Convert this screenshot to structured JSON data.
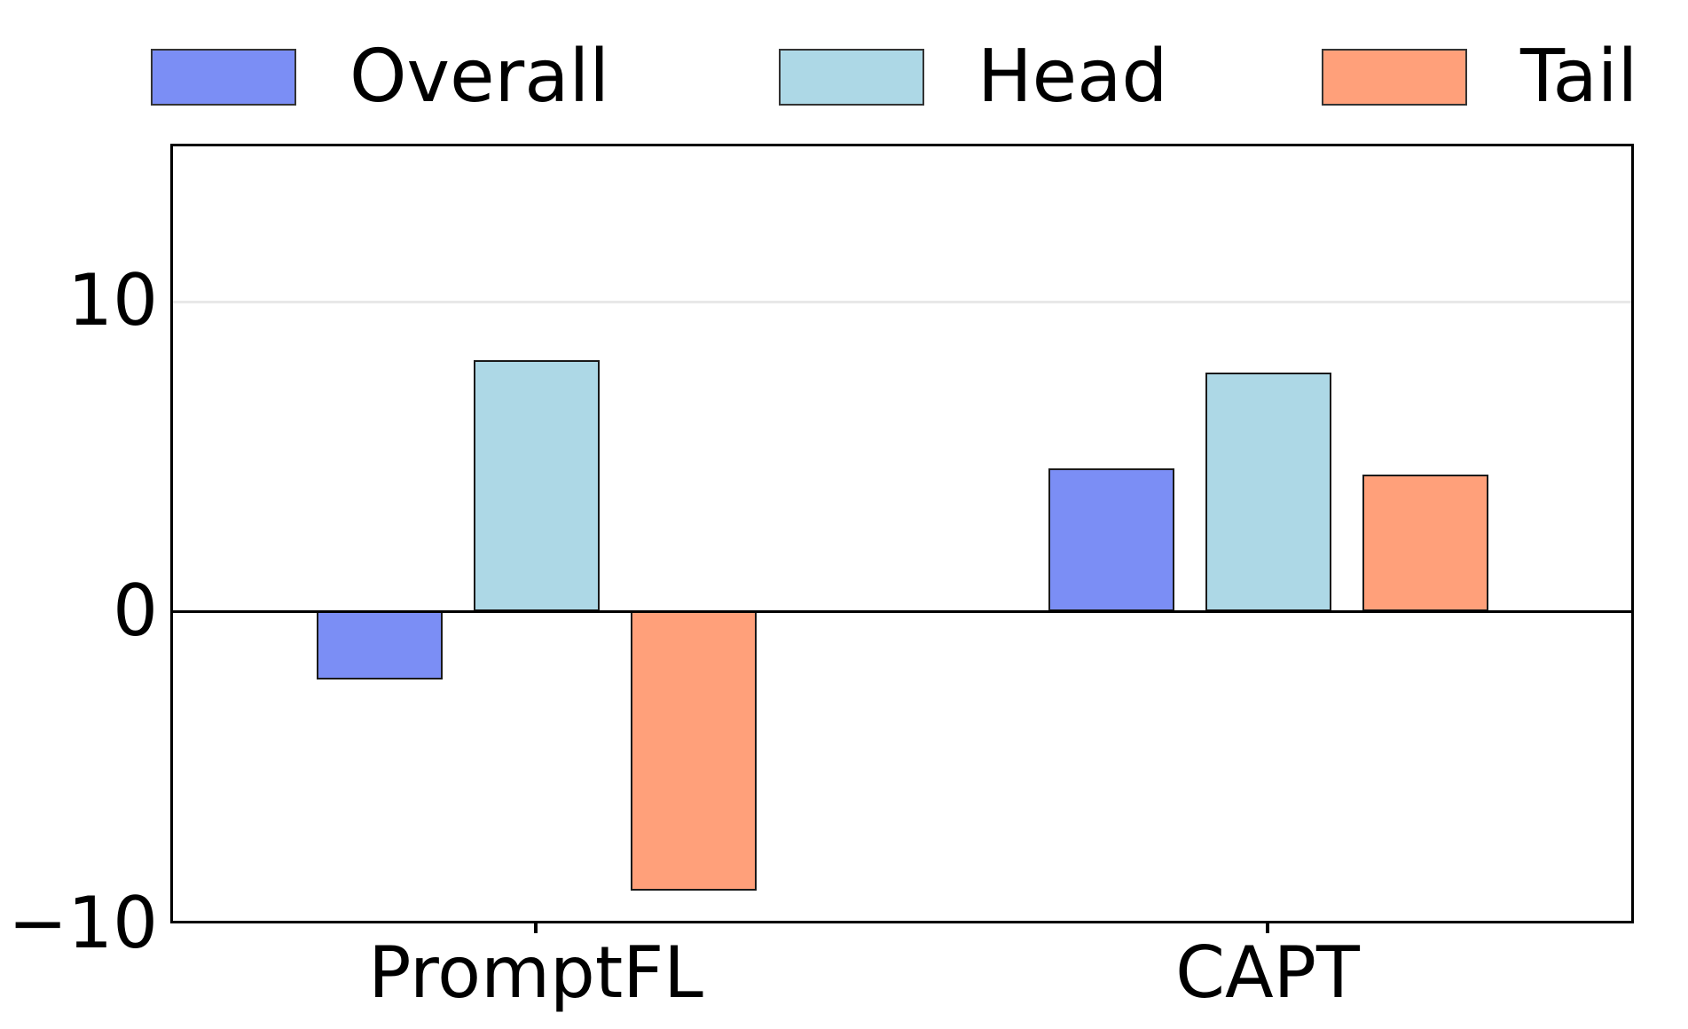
{
  "chart_data": {
    "type": "bar",
    "title": "",
    "xlabel": "",
    "ylabel": "",
    "categories": [
      "PromptFL",
      "CAPT"
    ],
    "series": [
      {
        "name": "Overall",
        "color": "#7B8EF5",
        "values": [
          -2.2,
          4.6
        ]
      },
      {
        "name": "Head",
        "color": "#ADD8E6",
        "values": [
          8.1,
          7.7
        ]
      },
      {
        "name": "Tail",
        "color": "#FFA07A",
        "values": [
          -9.0,
          4.4
        ]
      }
    ],
    "ylim": [
      -10,
      15.1
    ],
    "yticks": [
      {
        "value": 10,
        "label": "10"
      },
      {
        "value": 0,
        "label": "0"
      },
      {
        "value": -10,
        "label": "−10"
      }
    ],
    "grid": {
      "y_values": [
        10
      ],
      "color": "#e8e8e8"
    },
    "zero_line": true,
    "legend_position": "top",
    "bar_edge_color": "#1a1a1a",
    "axis_color": "#000000",
    "background_color": "#ffffff"
  }
}
